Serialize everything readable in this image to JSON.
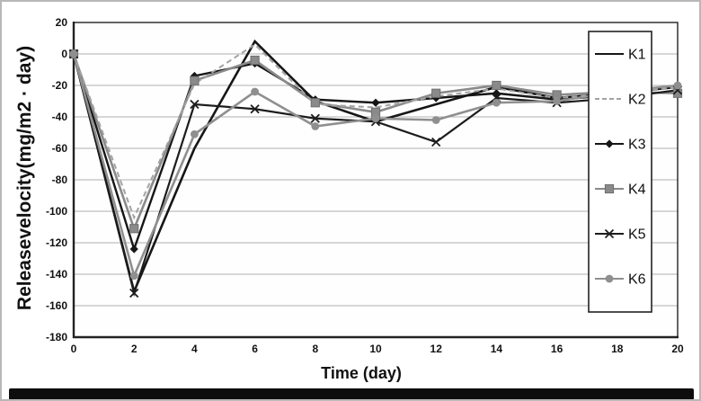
{
  "figure": {
    "background": "#ffffff",
    "frame_color": "#b8b8b8",
    "bottom_bar_color": "#0d0d0d",
    "plot_bg": "#fefefe",
    "grid_color": "#b0b0b0",
    "axis_color": "#222222",
    "tick_font_color": "#111111"
  },
  "chart_data": {
    "type": "line",
    "title": "",
    "xlabel": "Time (day)",
    "ylabel": "Releasevelocity(mg/m2 · day)",
    "xlim": [
      0,
      20
    ],
    "ylim": [
      -180,
      20
    ],
    "x_ticks": [
      0,
      2,
      4,
      6,
      8,
      10,
      12,
      14,
      16,
      18,
      20
    ],
    "y_ticks": [
      20,
      0,
      -20,
      -40,
      -60,
      -80,
      -100,
      -120,
      -140,
      -160,
      -180
    ],
    "grid": true,
    "legend_position": "right-overlay",
    "x": [
      0,
      2,
      4,
      6,
      8,
      10,
      12,
      14,
      16,
      18,
      20
    ],
    "series": [
      {
        "name": "K1",
        "color": "#161616",
        "dash": "solid",
        "marker": "none",
        "values": [
          0,
          -151,
          -60,
          8,
          -30,
          -43,
          -32,
          -21,
          -28,
          -25,
          -21
        ]
      },
      {
        "name": "K2",
        "color": "#a3a3a3",
        "dash": "dashed",
        "marker": "none",
        "values": [
          0,
          -104,
          -19,
          6,
          -32,
          -34,
          -27,
          -22,
          -28,
          -25,
          -21
        ]
      },
      {
        "name": "K3",
        "color": "#161616",
        "dash": "solid",
        "marker": "diamond",
        "values": [
          0,
          -124,
          -14,
          -6,
          -29,
          -31,
          -28,
          -25,
          -29,
          -26,
          -20
        ]
      },
      {
        "name": "K4",
        "color": "#8a8a8a",
        "dash": "solid",
        "marker": "square",
        "values": [
          0,
          -111,
          -17,
          -4,
          -31,
          -37,
          -25,
          -20,
          -26,
          -24,
          -25
        ]
      },
      {
        "name": "K5",
        "color": "#1c1c1c",
        "dash": "solid",
        "marker": "x",
        "values": [
          0,
          -152,
          -32,
          -35,
          -41,
          -43,
          -56,
          -28,
          -31,
          -28,
          -23
        ]
      },
      {
        "name": "K6",
        "color": "#8f8f8f",
        "dash": "solid",
        "marker": "circle",
        "values": [
          0,
          -141,
          -51,
          -24,
          -46,
          -41,
          -42,
          -31,
          -30,
          -24,
          -20
        ]
      }
    ]
  }
}
